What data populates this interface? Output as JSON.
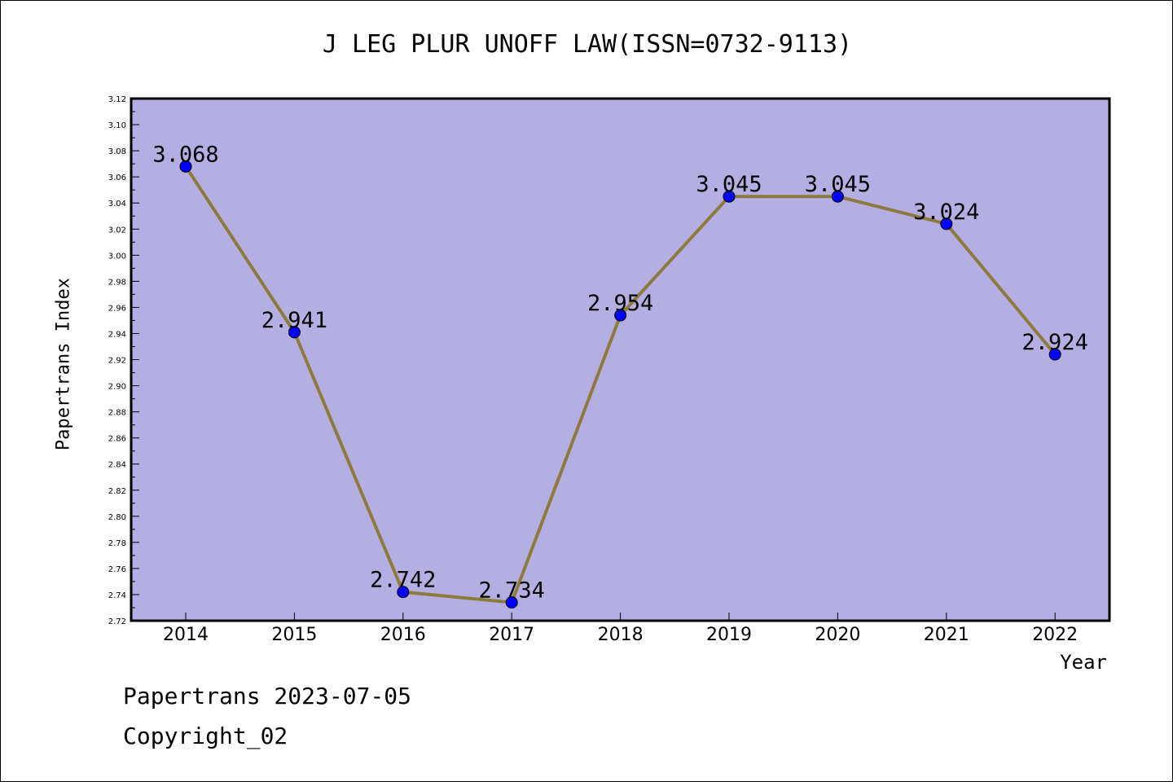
{
  "chart_data": {
    "type": "line",
    "title": "J LEG PLUR UNOFF LAW(ISSN=0732-9113)",
    "xlabel": "Year",
    "ylabel": "Papertrans Index",
    "categories": [
      "2014",
      "2015",
      "2016",
      "2017",
      "2018",
      "2019",
      "2020",
      "2021",
      "2022"
    ],
    "series": [
      {
        "values": [
          3.068,
          2.941,
          2.742,
          2.734,
          2.954,
          3.045,
          3.045,
          3.024,
          2.924
        ]
      }
    ],
    "data_labels": [
      "3.068",
      "2.941",
      "2.742",
      "2.734",
      "2.954",
      "3.045",
      "3.045",
      "3.024",
      "2.924"
    ],
    "ylim": [
      2.72,
      3.12
    ],
    "yticks": [
      "2.72",
      "2.74",
      "2.76",
      "2.78",
      "2.80",
      "2.82",
      "2.84",
      "2.86",
      "2.88",
      "2.90",
      "2.92",
      "2.94",
      "2.96",
      "2.98",
      "3.00",
      "3.02",
      "3.04",
      "3.06",
      "3.08",
      "3.10",
      "3.12"
    ],
    "grid": false,
    "colors": {
      "plot_background": "#b4aee2",
      "line": "#8c7b3c",
      "marker": "#0000ff"
    }
  },
  "footer": {
    "date_text": "Papertrans 2023-07-05",
    "copyright_text": "Copyright_02"
  }
}
